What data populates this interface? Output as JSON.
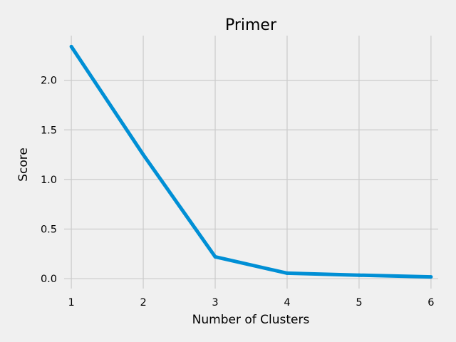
{
  "chart_data": {
    "type": "line",
    "title": "Primer",
    "xlabel": "Number of Clusters",
    "ylabel": "Score",
    "x": [
      1,
      2,
      3,
      4,
      5,
      6
    ],
    "series": [
      {
        "values": [
          2.34,
          1.25,
          0.22,
          0.055,
          0.035,
          0.018
        ]
      }
    ],
    "xlim": [
      0.9,
      6.1
    ],
    "ylim": [
      -0.1,
      2.45
    ],
    "xticks": [
      1,
      2,
      3,
      4,
      5,
      6
    ],
    "yticks": [
      0.0,
      0.5,
      1.0,
      1.5,
      2.0
    ],
    "ytick_labels": [
      "0.0",
      "0.5",
      "1.0",
      "1.5",
      "2.0"
    ],
    "grid": true,
    "colors": {
      "line": "#008fd5",
      "grid": "#cbcbcb",
      "background": "#f0f0f0"
    }
  }
}
